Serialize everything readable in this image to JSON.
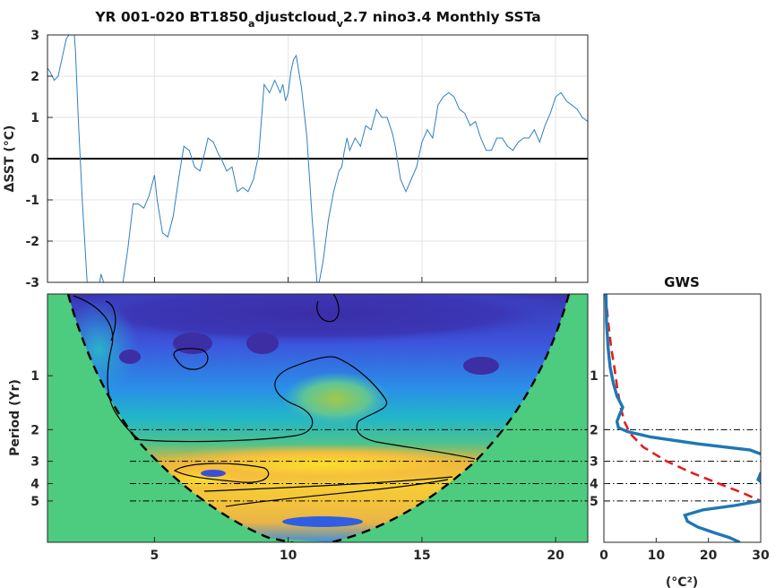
{
  "title": {
    "prefix": "YR 001-020 BT1850",
    "sub_a": "a",
    "mid": "djustcloud",
    "sub_v": "v",
    "suffix": "2.7 nino3.4 Monthly SSTa"
  },
  "chart_data": [
    {
      "type": "line",
      "ylabel": "ΔSST (°C)",
      "xlim": [
        1,
        21.2
      ],
      "ylim": [
        -3,
        3
      ],
      "yticks": [
        "3",
        "2",
        "1",
        "0",
        "-1",
        "-2",
        "-3"
      ],
      "grid": true,
      "zero_line": true,
      "line_color": "#2f7fc1",
      "series": [
        {
          "x": [
            1.0,
            1.1,
            1.25,
            1.4,
            1.5,
            1.7,
            1.9,
            2.0,
            2.05,
            2.15,
            2.3,
            2.5,
            2.6,
            2.75,
            2.9,
            3.0,
            3.1,
            3.3,
            3.6,
            3.8,
            4.0,
            4.2,
            4.4,
            4.6,
            4.8,
            5.0,
            5.1,
            5.3,
            5.5,
            5.7,
            5.9,
            6.1,
            6.3,
            6.5,
            6.7,
            6.9,
            7.0,
            7.2,
            7.4,
            7.5,
            7.7,
            7.9,
            8.1,
            8.3,
            8.5,
            8.7,
            8.9,
            9.1,
            9.3,
            9.5,
            9.7,
            9.8,
            9.9,
            10.0,
            10.1,
            10.2,
            10.3,
            10.5,
            10.7,
            10.9,
            11.1,
            11.3,
            11.5,
            11.7,
            11.9,
            12.0,
            12.1,
            12.2,
            12.3,
            12.5,
            12.7,
            12.9,
            13.1,
            13.3,
            13.5,
            13.7,
            13.9,
            14.0,
            14.2,
            14.4,
            14.6,
            14.8,
            15.0,
            15.2,
            15.4,
            15.6,
            15.8,
            16.0,
            16.2,
            16.4,
            16.6,
            16.8,
            17.0,
            17.2,
            17.4,
            17.6,
            17.8,
            18.0,
            18.2,
            18.4,
            18.6,
            18.8,
            19.0,
            19.2,
            19.4,
            19.6,
            19.8,
            20.0,
            20.2,
            20.4,
            20.6,
            20.8,
            21.0,
            21.2
          ],
          "y": [
            2.2,
            2.1,
            1.9,
            2.0,
            2.3,
            2.9,
            3.1,
            3.0,
            2.6,
            1.0,
            -1.0,
            -3.2,
            -3.5,
            -3.5,
            -3.2,
            -2.8,
            -3.0,
            -3.3,
            -3.3,
            -3.1,
            -2.2,
            -1.1,
            -1.1,
            -1.2,
            -0.9,
            -0.4,
            -1.0,
            -1.8,
            -1.9,
            -1.4,
            -0.5,
            0.3,
            0.2,
            -0.2,
            -0.3,
            0.2,
            0.5,
            0.4,
            0.1,
            0.0,
            -0.3,
            -0.2,
            -0.8,
            -0.7,
            -0.8,
            -0.5,
            0.1,
            1.8,
            1.6,
            1.9,
            1.6,
            1.8,
            1.4,
            1.6,
            2.1,
            2.4,
            2.5,
            1.7,
            0.5,
            -1.5,
            -3.2,
            -2.5,
            -1.5,
            -0.8,
            -0.3,
            -0.2,
            0.2,
            0.5,
            0.2,
            0.5,
            0.3,
            0.8,
            0.7,
            1.2,
            1.0,
            1.0,
            0.6,
            0.3,
            -0.5,
            -0.8,
            -0.5,
            -0.2,
            0.4,
            0.7,
            0.5,
            1.3,
            1.5,
            1.6,
            1.5,
            1.2,
            1.1,
            0.8,
            0.9,
            0.5,
            0.2,
            0.2,
            0.5,
            0.5,
            0.3,
            0.2,
            0.4,
            0.5,
            0.5,
            0.7,
            0.4,
            0.8,
            1.1,
            1.5,
            1.6,
            1.4,
            1.3,
            1.2,
            1.0,
            0.9
          ]
        }
      ]
    },
    {
      "type": "heatmap",
      "ylabel": "Period (Yr)",
      "xlim": [
        1,
        21.2
      ],
      "xticks": [
        "5",
        "10",
        "15",
        "20"
      ],
      "yticks": [
        "1",
        "2",
        "3",
        "4",
        "5"
      ],
      "ylim_period": [
        0.35,
        8.5
      ],
      "reference_periods": [
        2,
        3,
        4,
        5
      ],
      "cone_of_influence": true,
      "background_color": "#4dcb7e"
    },
    {
      "type": "line",
      "title": "GWS",
      "xlabel": "(°C²)",
      "xticks": [
        "0",
        "10",
        "20",
        "30"
      ],
      "xlim": [
        0,
        30
      ],
      "yticks": [
        "1",
        "2",
        "3",
        "4",
        "5"
      ],
      "series": [
        {
          "name": "",
          "color": "#1f77b4",
          "period": [
            0.35,
            0.5,
            0.7,
            0.9,
            1.1,
            1.3,
            1.5,
            1.65,
            1.8,
            1.95,
            2.05,
            2.2,
            2.4,
            2.6,
            2.8,
            3.0,
            3.2,
            3.5,
            3.8,
            4.0,
            4.3,
            4.6,
            5.0,
            5.3,
            5.6,
            6.0,
            6.5,
            7.0,
            7.5,
            8.0,
            8.5
          ],
          "power": [
            0.4,
            0.5,
            0.8,
            1.2,
            1.8,
            2.5,
            3.6,
            3.0,
            2.5,
            2.8,
            4.5,
            9.0,
            18.0,
            28.0,
            31.0,
            32.5,
            32.0,
            30.0,
            29.5,
            30.5,
            31.5,
            32.0,
            30.0,
            25.0,
            19.0,
            15.5,
            16.0,
            18.0,
            21.0,
            24.0,
            26.0
          ]
        },
        {
          "name": "",
          "color": "#e02020",
          "dashed": true,
          "period": [
            0.35,
            0.5,
            0.7,
            0.9,
            1.2,
            1.5,
            1.8,
            2.1,
            2.5,
            3.0,
            3.5,
            4.0,
            4.5,
            5.0
          ],
          "power": [
            0.3,
            0.8,
            1.4,
            2.0,
            2.6,
            3.2,
            3.9,
            5.0,
            7.5,
            12.0,
            17.0,
            22.0,
            26.5,
            30.0
          ]
        }
      ]
    }
  ]
}
